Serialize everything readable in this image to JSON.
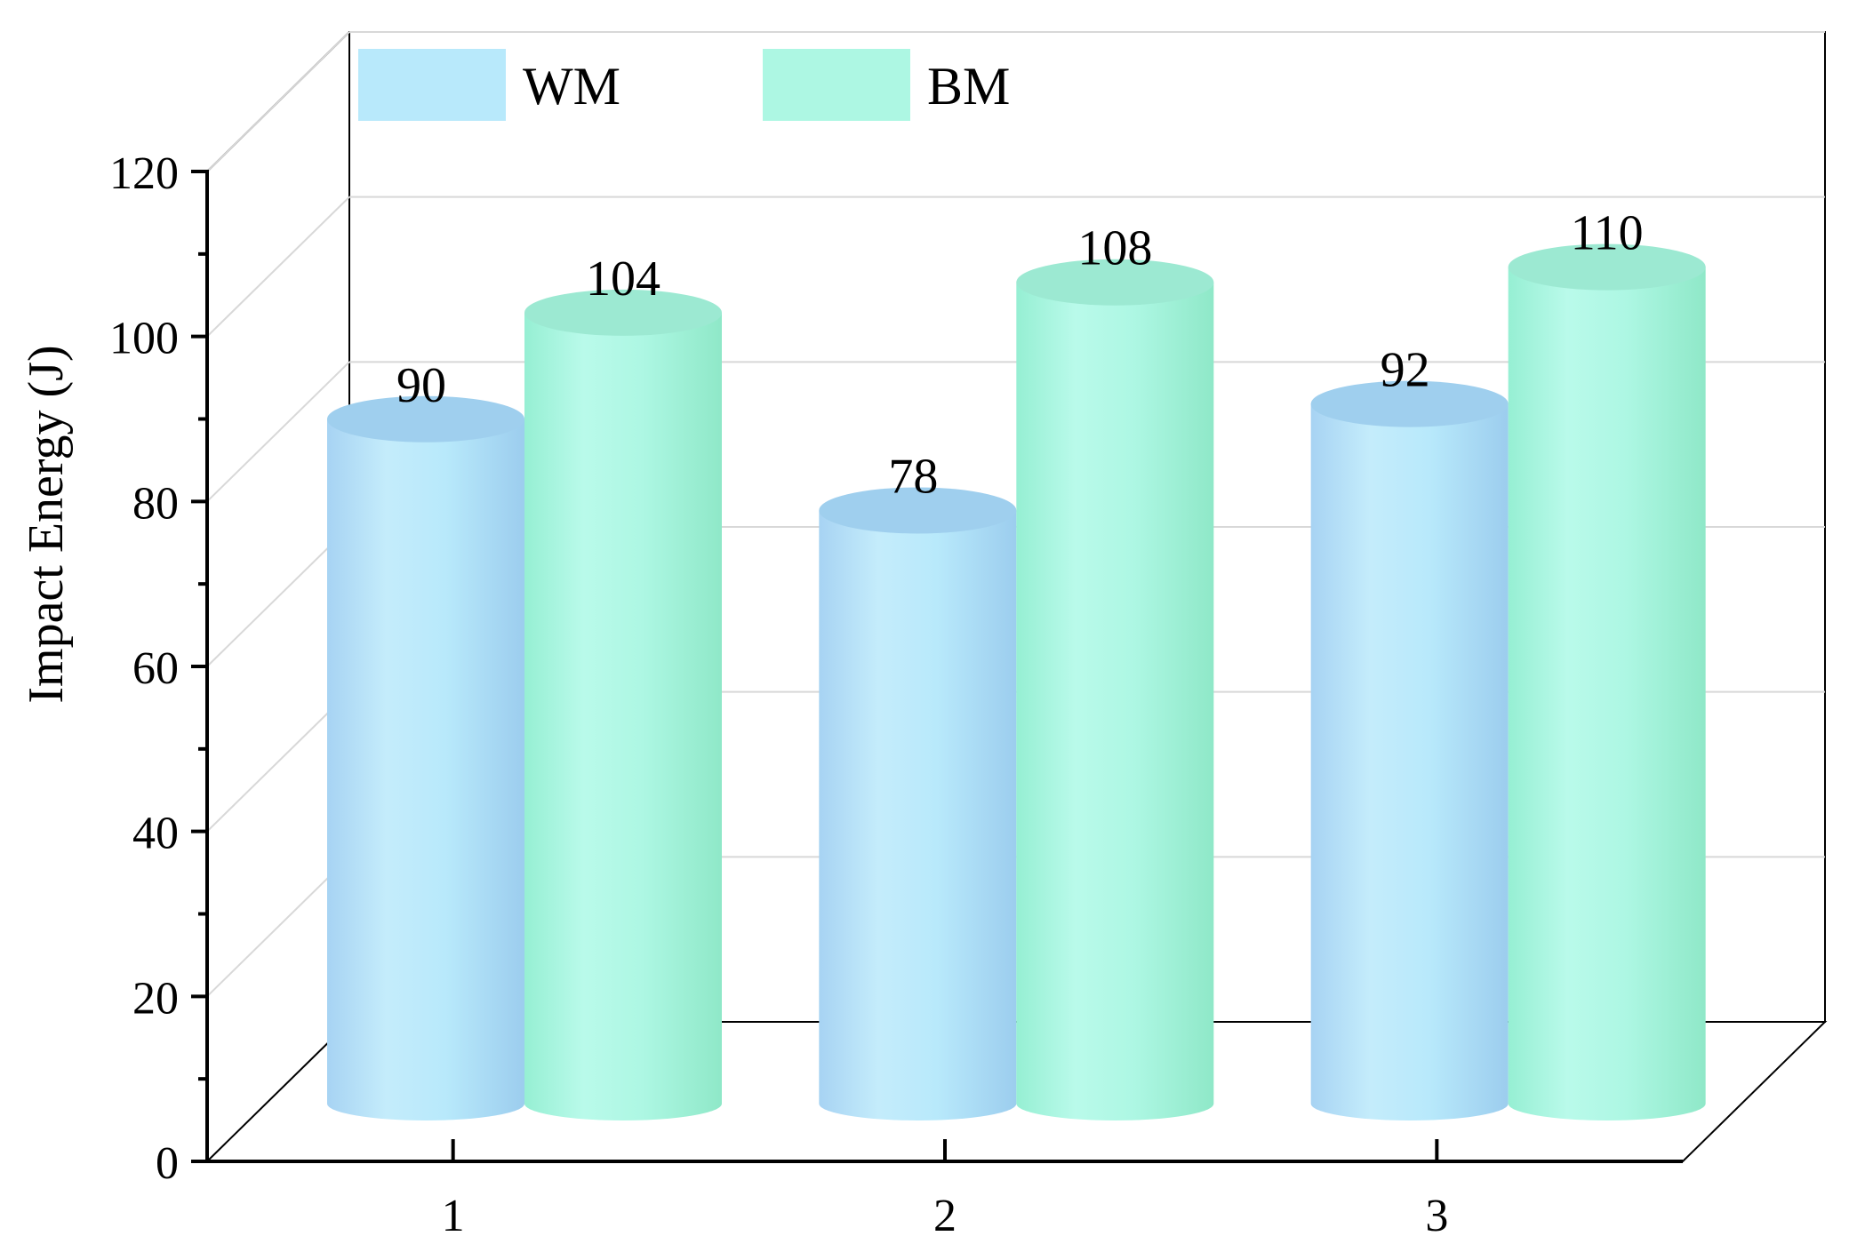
{
  "chart_data": {
    "type": "bar",
    "style": "3d-cylinder",
    "categories": [
      "1",
      "2",
      "3"
    ],
    "series": [
      {
        "name": "WM",
        "values": [
          90,
          78,
          92
        ],
        "color": "#b8e9fb"
      },
      {
        "name": "BM",
        "values": [
          104,
          108,
          110
        ],
        "color": "#adf7e3"
      }
    ],
    "ylabel": "Impact Energy (J)",
    "xlabel": "",
    "ylim": [
      0,
      120
    ],
    "yticks": [
      0,
      20,
      40,
      60,
      80,
      100,
      120
    ],
    "grid": true,
    "legend_position": "top-left"
  }
}
